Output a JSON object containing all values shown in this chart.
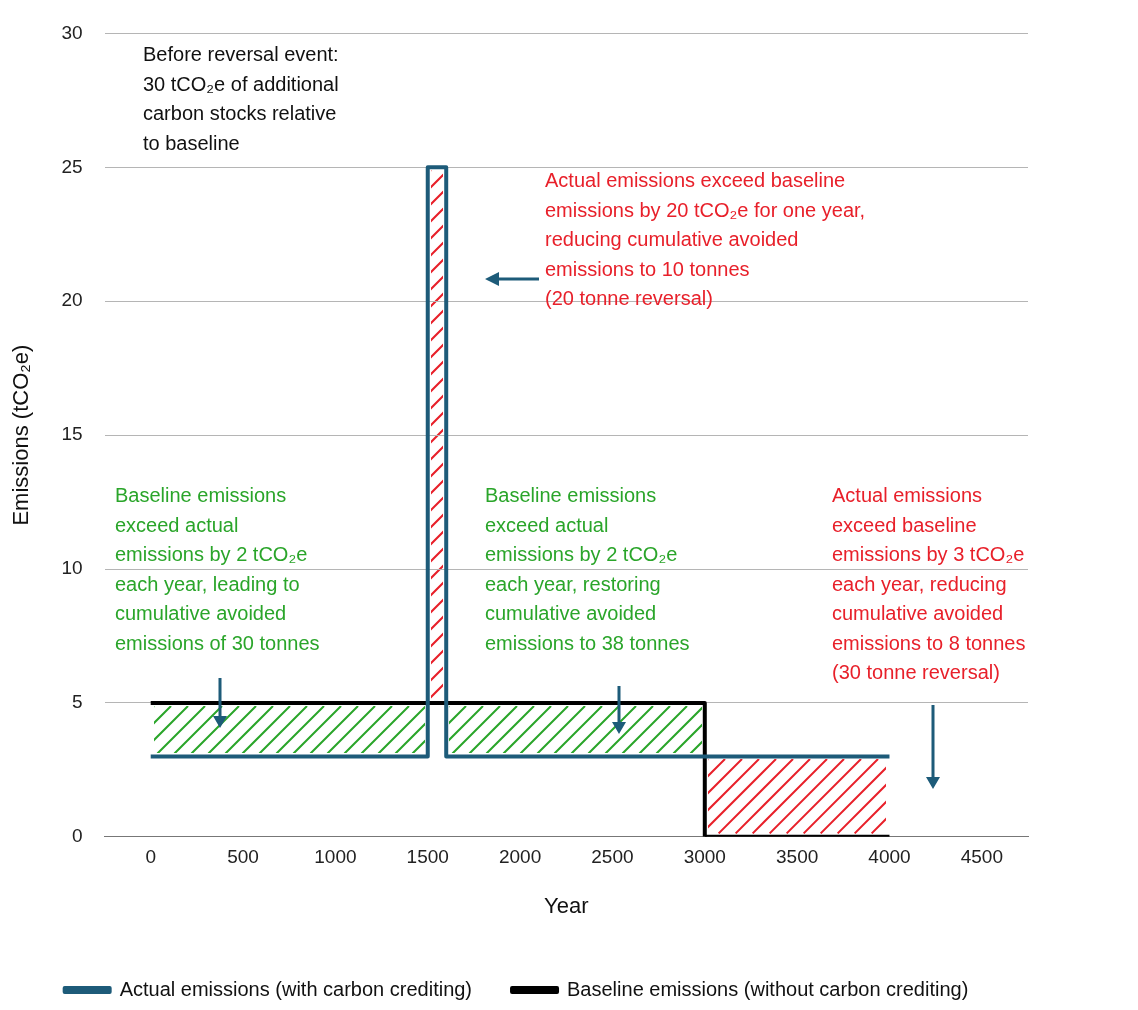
{
  "chart_data": {
    "type": "line",
    "xlabel": "Year",
    "ylabel": "Emissions (tCO₂e)",
    "xlim": [
      -250,
      4750
    ],
    "xticks": [
      0,
      500,
      1000,
      1500,
      2000,
      2500,
      3000,
      3500,
      4000,
      4500
    ],
    "ylim": [
      0,
      30
    ],
    "yticks": [
      0,
      5,
      10,
      15,
      20,
      25,
      30
    ],
    "grid": "y",
    "legend": "bottom",
    "marker": "none",
    "series": [
      {
        "name": "Actual emissions (with carbon crediting)",
        "color": "#1d5b79",
        "x": [
          0,
          1500,
          1500,
          1600,
          1600,
          4000
        ],
        "values": [
          3,
          3,
          25,
          25,
          3,
          3
        ]
      },
      {
        "name": "Baseline emissions (without carbon crediting)",
        "color": "#000000",
        "x": [
          0,
          3000,
          3000,
          4000
        ],
        "values": [
          5,
          5,
          0,
          0
        ]
      }
    ],
    "annotations": [
      "Before reversal event:\n30 tCO₂e of additional\ncarbon stocks relative\nto baseline",
      "Actual emissions exceed baseline\nemissions by 20 tCO₂e for one year,\nreducing cumulative avoided\nemissions to 10 tonnes\n(20 tonne reversal)",
      "Baseline emissions\nexceed actual\nemissions by 2 tCO₂e\neach year, leading to\ncumulative avoided\nemissions of 30 tonnes",
      "Baseline emissions\nexceed actual\nemissions by 2 tCO₂e\neach year, restoring\ncumulative avoided\nemissions to 38 tonnes",
      "Actual emissions\nexceed baseline\nemissions by 3 tCO₂e\neach year, reducing\ncumulative avoided\nemissions to 8 tonnes\n(30 tonne reversal)"
    ]
  }
}
